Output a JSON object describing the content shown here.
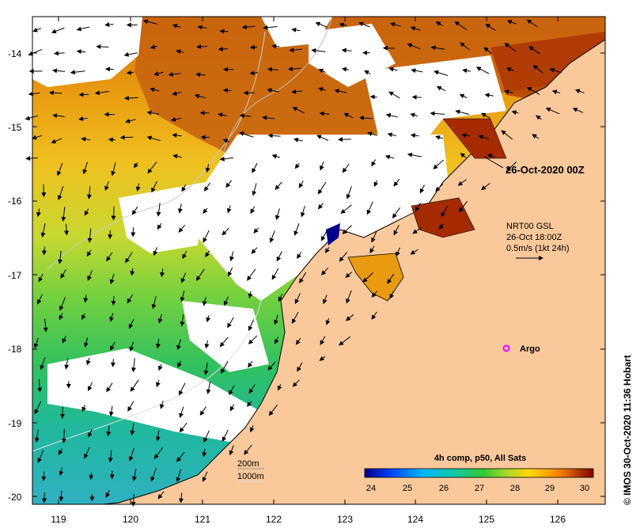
{
  "map": {
    "date_label": "26-Oct-2020 00Z",
    "current_info": {
      "line1": "NRT00 GSL",
      "line2": "26-Oct 18:00Z",
      "line3": "0.5m/s (1kt 24h)"
    },
    "argo_label": "Argo",
    "contours": {
      "label_200m": "200m",
      "label_1000m": "1000m"
    },
    "colorbar": {
      "title": "4h comp, p50, All Sats",
      "ticks": [
        "24",
        "25",
        "26",
        "27",
        "28",
        "29",
        "30"
      ],
      "colors": [
        "#00008b",
        "#0048ff",
        "#00b7ff",
        "#14c8a0",
        "#32c832",
        "#a6d92a",
        "#ffd700",
        "#ffa500",
        "#e86a00",
        "#a52a00",
        "#8b0000"
      ]
    },
    "credit": "© IMOS 30-Oct-2020 11:36 Hobart",
    "lat_ticks": [
      "-14",
      "-15",
      "-16",
      "-17",
      "-18",
      "-19",
      "-20"
    ],
    "lon_ticks": [
      "119",
      "120",
      "121",
      "122",
      "123",
      "124",
      "125",
      "126"
    ],
    "land_color": "#f9c89b",
    "no_data_color": "#ffffff"
  }
}
